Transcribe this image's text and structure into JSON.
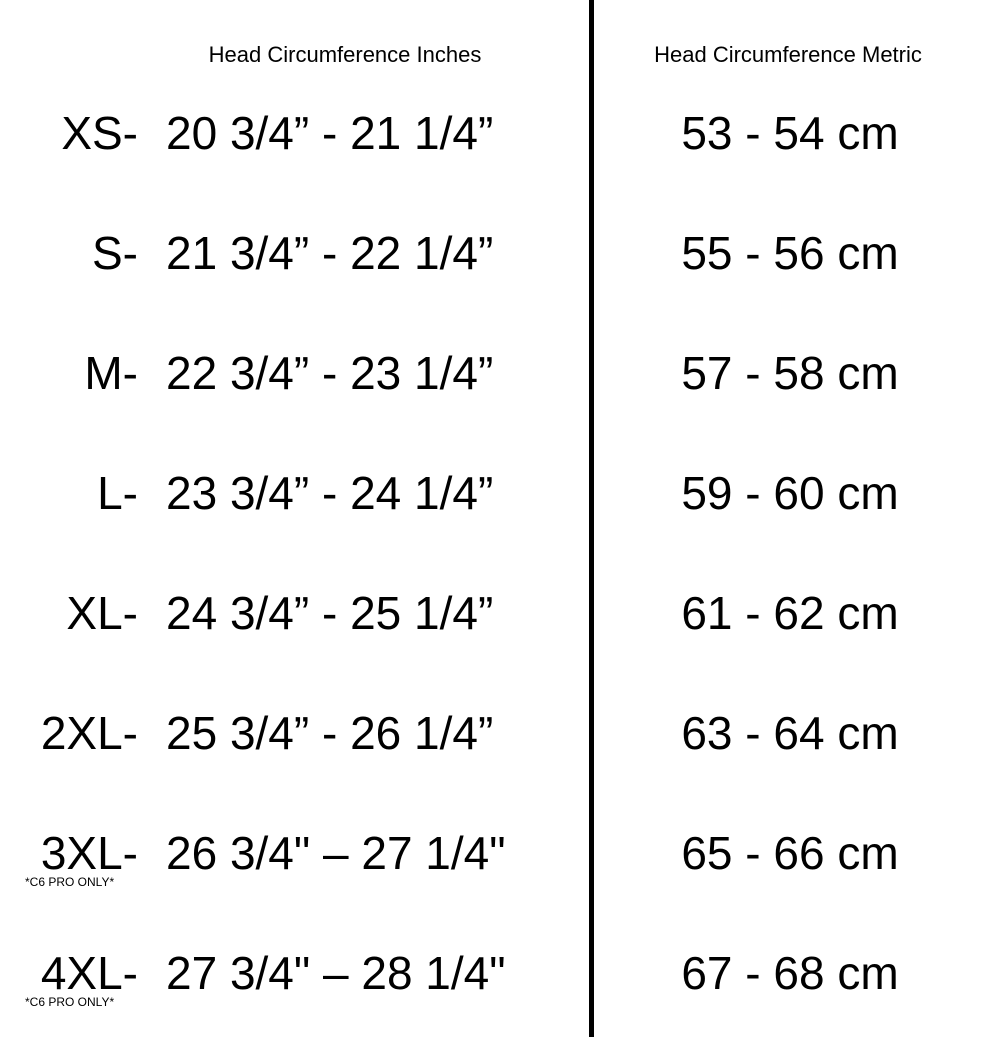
{
  "headers": {
    "inches": "Head Circumference Inches",
    "metric": "Head Circumference Metric"
  },
  "rows": [
    {
      "size": "XS-",
      "inches": "20 3/4” - 21 1/4”",
      "metric": "53 - 54 cm"
    },
    {
      "size": "S-",
      "inches": "21 3/4” - 22 1/4”",
      "metric": "55 - 56 cm"
    },
    {
      "size": "M-",
      "inches": "22 3/4” - 23 1/4”",
      "metric": "57 - 58 cm"
    },
    {
      "size": "L-",
      "inches": "23 3/4” - 24 1/4”",
      "metric": "59 - 60 cm"
    },
    {
      "size": "XL-",
      "inches": "24 3/4” - 25 1/4”",
      "metric": "61 - 62 cm"
    },
    {
      "size": "2XL-",
      "inches": "25 3/4” - 26 1/4”",
      "metric": "63 - 64 cm"
    },
    {
      "size": "3XL-",
      "inches": "26 3/4\" – 27 1/4\"",
      "metric": "65 - 66 cm",
      "note": "*C6 PRO ONLY*"
    },
    {
      "size": "4XL-",
      "inches": "27 3/4\" – 28 1/4\"",
      "metric": "67 - 68 cm",
      "note": "*C6 PRO ONLY*"
    }
  ]
}
